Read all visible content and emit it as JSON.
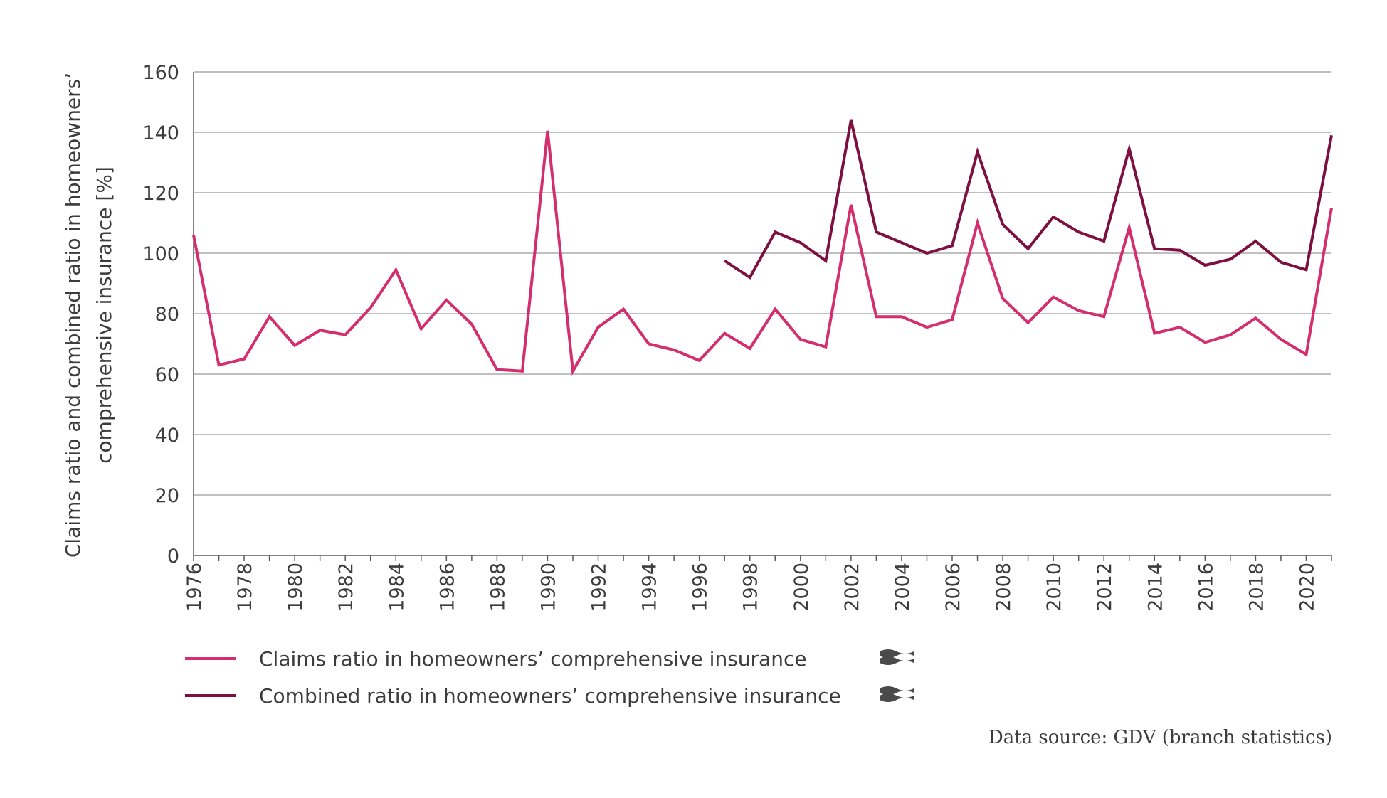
{
  "chart_data": {
    "type": "line",
    "ylabel_lines": [
      "Claims ratio and combined ratio in homeowners’",
      "comprehensive insurance [%]"
    ],
    "ylim": [
      0,
      160
    ],
    "yticks": [
      0,
      20,
      40,
      60,
      80,
      100,
      120,
      140,
      160
    ],
    "x": [
      1976,
      1977,
      1978,
      1979,
      1980,
      1981,
      1982,
      1983,
      1984,
      1985,
      1986,
      1987,
      1988,
      1989,
      1990,
      1991,
      1992,
      1993,
      1994,
      1995,
      1996,
      1997,
      1998,
      1999,
      2000,
      2001,
      2002,
      2003,
      2004,
      2005,
      2006,
      2007,
      2008,
      2009,
      2010,
      2011,
      2012,
      2013,
      2014,
      2015,
      2016,
      2017,
      2018,
      2019,
      2020,
      2021
    ],
    "xtick_labels": [
      "1976",
      "1978",
      "1980",
      "1982",
      "1984",
      "1986",
      "1988",
      "1990",
      "1992",
      "1994",
      "1996",
      "1998",
      "2000",
      "2002",
      "2004",
      "2006",
      "2008",
      "2010",
      "2012",
      "2014",
      "2016",
      "2018",
      "2020"
    ],
    "grid": true,
    "series": [
      {
        "name": "Claims ratio in homeowners’ comprehensive insurance",
        "color": "#d42e6e",
        "values": [
          106,
          63,
          65,
          79,
          69.5,
          74.5,
          73,
          82,
          94.5,
          75,
          84.5,
          76.5,
          61.5,
          61,
          140.5,
          61,
          75.5,
          81.5,
          70,
          68,
          64.5,
          73.5,
          68.5,
          81.5,
          71.5,
          69,
          116,
          79,
          79,
          75.5,
          78,
          110,
          85,
          77,
          85.5,
          81,
          79,
          108.5,
          73.5,
          75.5,
          70.5,
          73,
          78.5,
          71.5,
          66.5,
          115
        ]
      },
      {
        "name": "Combined ratio in homeowners’ comprehensive insurance",
        "color": "#7d1040",
        "values": [
          null,
          null,
          null,
          null,
          null,
          null,
          null,
          null,
          null,
          null,
          null,
          null,
          null,
          null,
          null,
          null,
          null,
          null,
          null,
          null,
          null,
          97.5,
          92,
          107,
          103.5,
          97.5,
          144,
          107,
          103.5,
          100,
          102.5,
          133.5,
          109.5,
          101.5,
          112,
          107,
          104,
          134.5,
          101.5,
          101,
          96,
          98,
          104,
          97,
          94.5,
          139
        ]
      }
    ],
    "legend": [
      {
        "label": "Claims ratio in homeowners’ comprehensive insurance",
        "color": "#d42e6e",
        "icon": "waves-icon"
      },
      {
        "label": "Combined ratio in homeowners’ comprehensive insurance",
        "color": "#7d1040",
        "icon": "waves-icon"
      }
    ],
    "source": "Data source: GDV (branch statistics)"
  }
}
